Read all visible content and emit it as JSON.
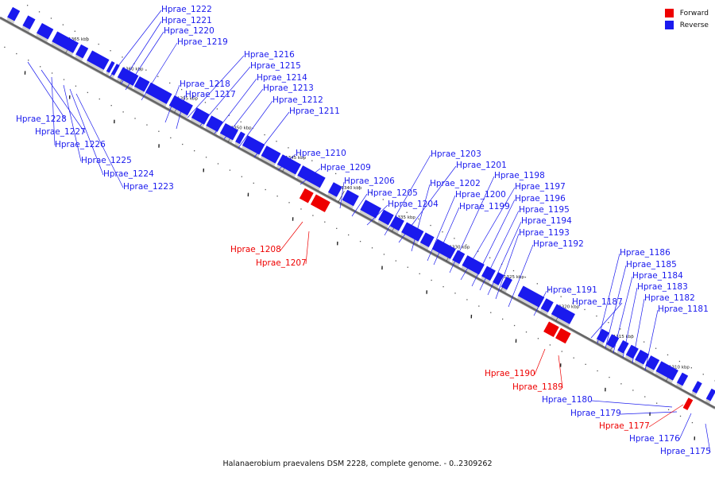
{
  "colors": {
    "forward": "#ee0000",
    "reverse": "#1a1aee",
    "backbone": "#666666"
  },
  "legend": {
    "forward": "Forward",
    "reverse": "Reverse"
  },
  "caption": "Halanaerobium praevalens DSM 2228, complete genome. - 0..2309262",
  "ticks": [
    "1365 kbp",
    "1360 kbp",
    "1355 kbp",
    "1350 kbp",
    "1345 kbp",
    "1340 kbp",
    "1335 kbp",
    "1330 kbp",
    "1325 kbp",
    "1320 kbp",
    "1315 kbp",
    "1310 kbp"
  ],
  "genes": [
    {
      "id": "Hprae_1222",
      "strand": "reverse"
    },
    {
      "id": "Hprae_1221",
      "strand": "reverse"
    },
    {
      "id": "Hprae_1220",
      "strand": "reverse"
    },
    {
      "id": "Hprae_1219",
      "strand": "reverse"
    },
    {
      "id": "Hprae_1216",
      "strand": "reverse"
    },
    {
      "id": "Hprae_1215",
      "strand": "reverse"
    },
    {
      "id": "Hprae_1218",
      "strand": "reverse"
    },
    {
      "id": "Hprae_1214",
      "strand": "reverse"
    },
    {
      "id": "Hprae_1217",
      "strand": "reverse"
    },
    {
      "id": "Hprae_1213",
      "strand": "reverse"
    },
    {
      "id": "Hprae_1212",
      "strand": "reverse"
    },
    {
      "id": "Hprae_1211",
      "strand": "reverse"
    },
    {
      "id": "Hprae_1228",
      "strand": "reverse"
    },
    {
      "id": "Hprae_1227",
      "strand": "reverse"
    },
    {
      "id": "Hprae_1226",
      "strand": "reverse"
    },
    {
      "id": "Hprae_1225",
      "strand": "reverse"
    },
    {
      "id": "Hprae_1224",
      "strand": "reverse"
    },
    {
      "id": "Hprae_1223",
      "strand": "reverse"
    },
    {
      "id": "Hprae_1210",
      "strand": "reverse"
    },
    {
      "id": "Hprae_1209",
      "strand": "reverse"
    },
    {
      "id": "Hprae_1206",
      "strand": "reverse"
    },
    {
      "id": "Hprae_1205",
      "strand": "reverse"
    },
    {
      "id": "Hprae_1204",
      "strand": "reverse"
    },
    {
      "id": "Hprae_1203",
      "strand": "reverse"
    },
    {
      "id": "Hprae_1201",
      "strand": "reverse"
    },
    {
      "id": "Hprae_1202",
      "strand": "reverse"
    },
    {
      "id": "Hprae_1200",
      "strand": "reverse"
    },
    {
      "id": "Hprae_1199",
      "strand": "reverse"
    },
    {
      "id": "Hprae_1198",
      "strand": "reverse"
    },
    {
      "id": "Hprae_1197",
      "strand": "reverse"
    },
    {
      "id": "Hprae_1196",
      "strand": "reverse"
    },
    {
      "id": "Hprae_1195",
      "strand": "reverse"
    },
    {
      "id": "Hprae_1194",
      "strand": "reverse"
    },
    {
      "id": "Hprae_1193",
      "strand": "reverse"
    },
    {
      "id": "Hprae_1192",
      "strand": "reverse"
    },
    {
      "id": "Hprae_1191",
      "strand": "reverse"
    },
    {
      "id": "Hprae_1187",
      "strand": "reverse"
    },
    {
      "id": "Hprae_1186",
      "strand": "reverse"
    },
    {
      "id": "Hprae_1185",
      "strand": "reverse"
    },
    {
      "id": "Hprae_1184",
      "strand": "reverse"
    },
    {
      "id": "Hprae_1183",
      "strand": "reverse"
    },
    {
      "id": "Hprae_1182",
      "strand": "reverse"
    },
    {
      "id": "Hprae_1181",
      "strand": "reverse"
    },
    {
      "id": "Hprae_1180",
      "strand": "reverse"
    },
    {
      "id": "Hprae_1179",
      "strand": "reverse"
    },
    {
      "id": "Hprae_1176",
      "strand": "reverse"
    },
    {
      "id": "Hprae_1175",
      "strand": "reverse"
    },
    {
      "id": "Hprae_1208",
      "strand": "forward"
    },
    {
      "id": "Hprae_1207",
      "strand": "forward"
    },
    {
      "id": "Hprae_1190",
      "strand": "forward"
    },
    {
      "id": "Hprae_1189",
      "strand": "forward"
    },
    {
      "id": "Hprae_1177",
      "strand": "forward"
    }
  ]
}
